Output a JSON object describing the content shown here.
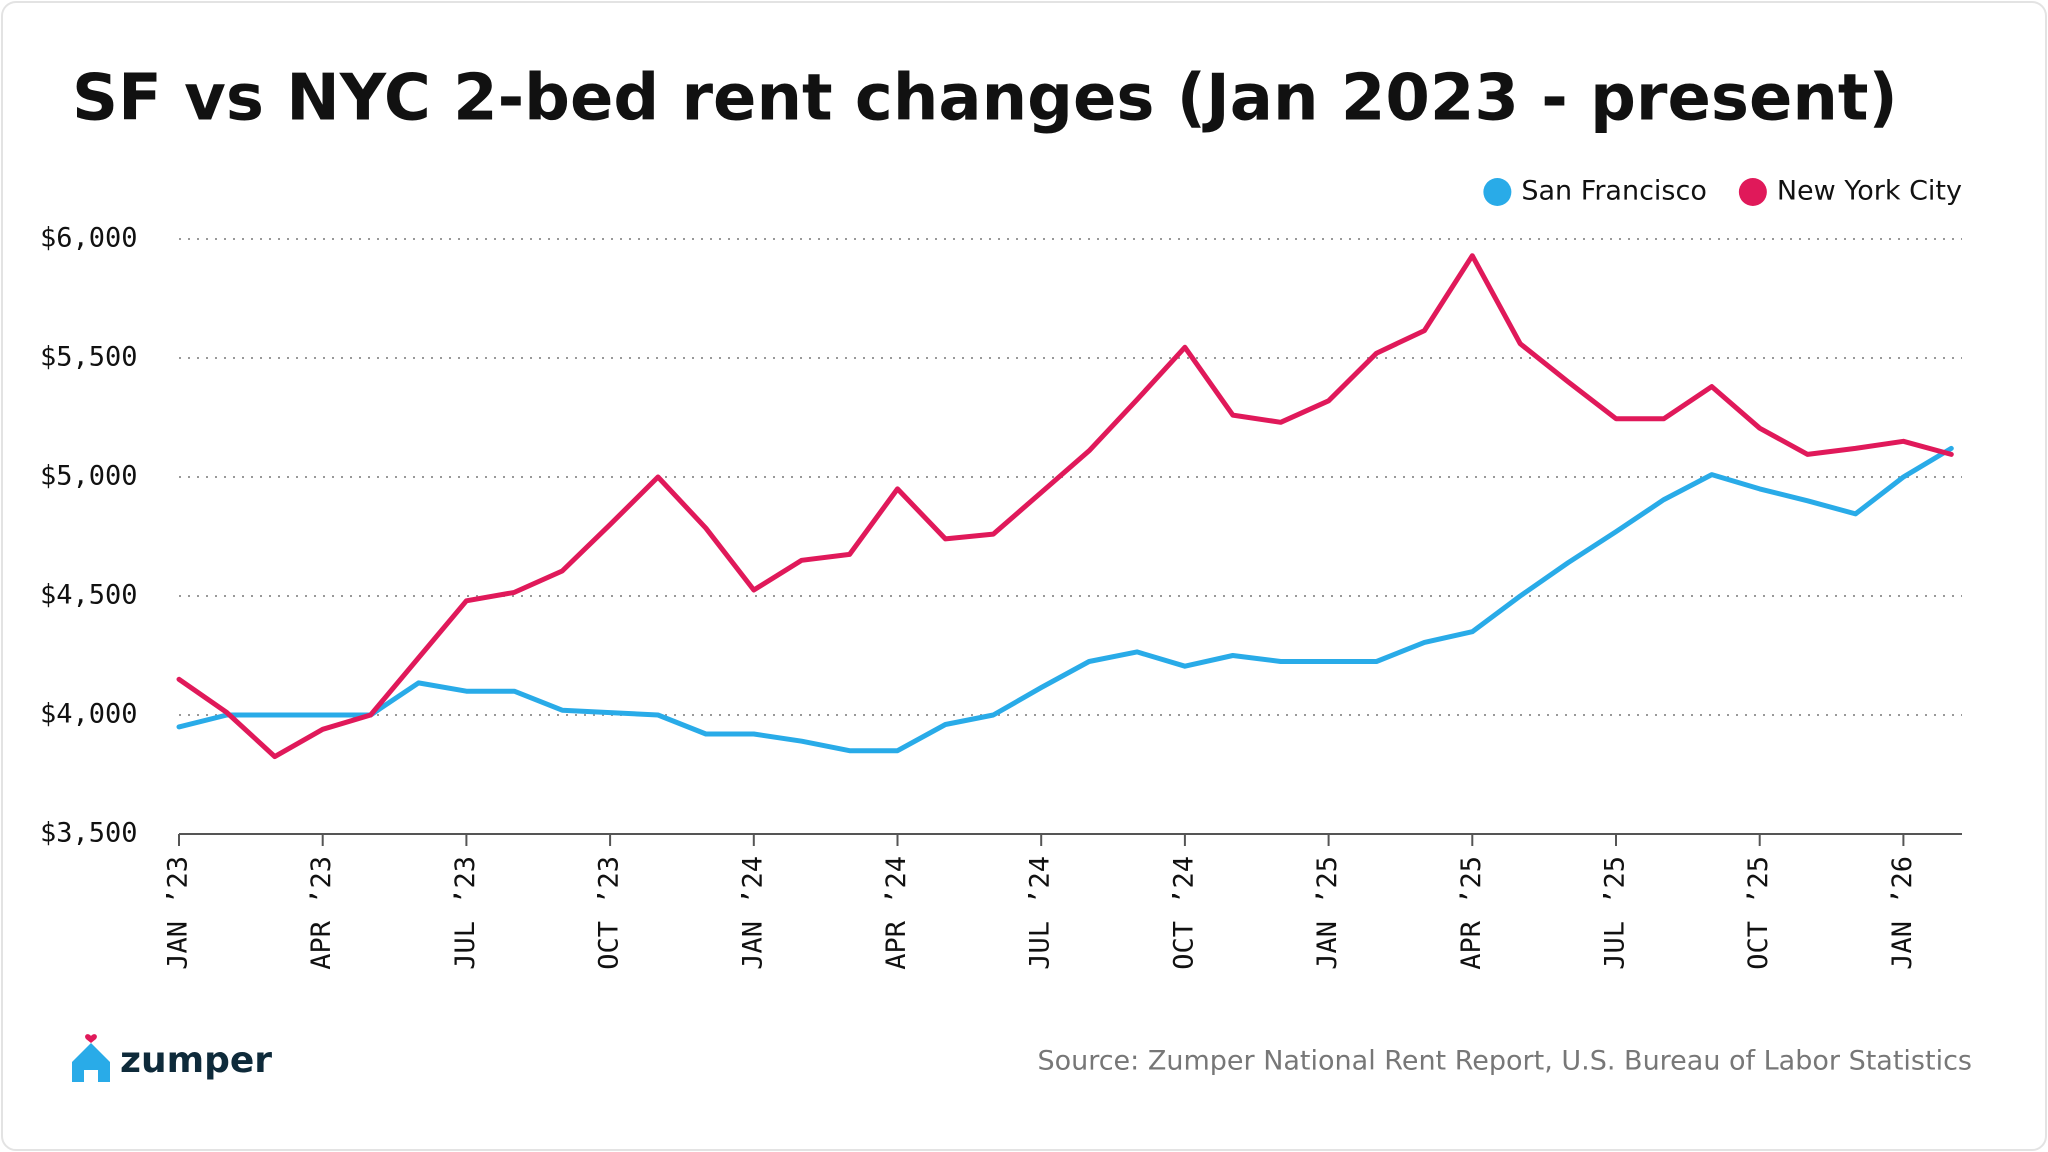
{
  "chart_data": {
    "type": "line",
    "title": "SF vs NYC 2-bed rent changes (Jan 2023 - present)",
    "source": "Source: Zumper National Rent Report, U.S. Bureau of Labor Statistics",
    "brand": "zumper",
    "categories": [
      "JAN ’23",
      null,
      null,
      "APR ’23",
      null,
      null,
      "JUL ’23",
      null,
      null,
      "OCT ’23",
      null,
      null,
      "JAN ’24",
      null,
      null,
      "APR ’24",
      null,
      null,
      "JUL ’24",
      null,
      null,
      "OCT ’24",
      null,
      null,
      "JAN ’25",
      null,
      null,
      "APR ’25",
      null,
      null,
      "JUL ’25",
      null,
      null,
      "OCT ’25",
      null,
      null,
      "JAN ’26",
      null
    ],
    "series": [
      {
        "name": "San Francisco",
        "color": "#29abe8",
        "values": [
          3950,
          4000,
          4000,
          4000,
          4000,
          4135,
          4100,
          4100,
          4020,
          4010,
          4000,
          3920,
          3920,
          3890,
          3850,
          3850,
          3960,
          4000,
          4115,
          4225,
          4265,
          4205,
          4250,
          4225,
          4225,
          4225,
          4305,
          4350,
          4500,
          4640,
          4770,
          4905,
          5010,
          4950,
          4900,
          4845,
          5000,
          5120
        ]
      },
      {
        "name": "New York City",
        "color": "#e0195a",
        "values": [
          4150,
          4010,
          3825,
          3940,
          4000,
          4240,
          4480,
          4515,
          4605,
          4800,
          5000,
          4785,
          4525,
          4650,
          4675,
          4950,
          4740,
          4760,
          4935,
          5110,
          5325,
          5545,
          5260,
          5230,
          5320,
          5520,
          5615,
          5930,
          5560,
          5400,
          5245,
          5245,
          5380,
          5205,
          5095,
          5120,
          5150,
          5095
        ]
      }
    ],
    "ylim": [
      3500,
      6000
    ],
    "yticks": [
      {
        "value": 3500,
        "label": "$3,500"
      },
      {
        "value": 4000,
        "label": "$4,000"
      },
      {
        "value": 4500,
        "label": "$4,500"
      },
      {
        "value": 5000,
        "label": "$5,000"
      },
      {
        "value": 5500,
        "label": "$5,500"
      },
      {
        "value": 6000,
        "label": "$6,000"
      }
    ],
    "grid": true,
    "legend": "top-right"
  }
}
